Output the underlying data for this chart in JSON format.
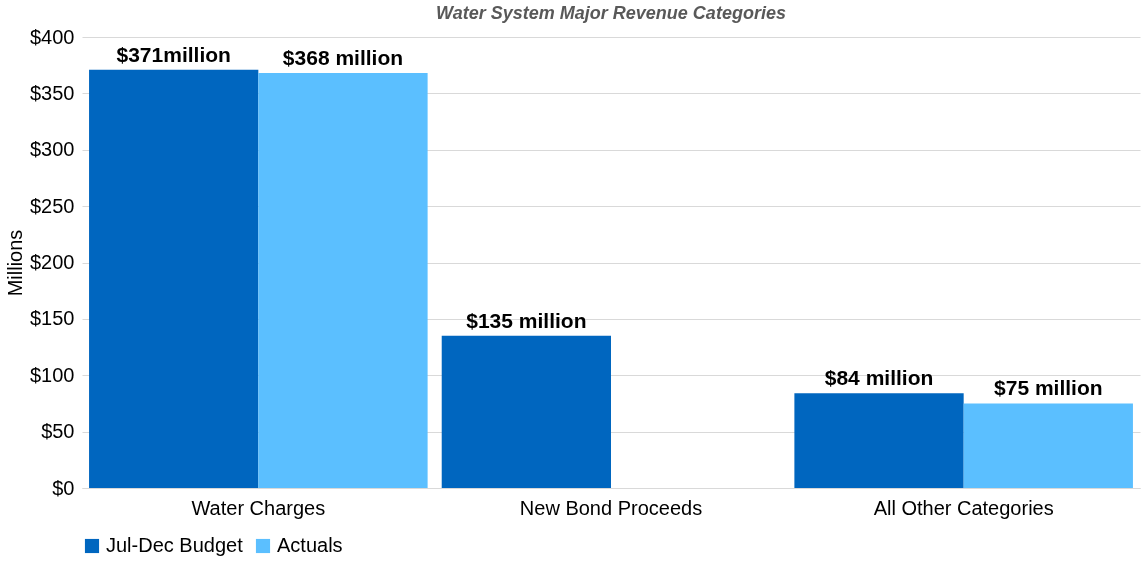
{
  "chart_data": {
    "type": "bar",
    "title": "Water System Major Revenue Categories",
    "ylabel": "Millions",
    "categories": [
      "Water Charges",
      "New Bond Proceeds",
      "All Other Categories"
    ],
    "series": [
      {
        "name": "Jul-Dec Budget",
        "color": "#0066bf",
        "values": [
          371,
          135,
          84
        ],
        "value_labels": [
          "$371million",
          "$135 million",
          "$84 million"
        ]
      },
      {
        "name": "Actuals",
        "color": "#5bbfff",
        "values": [
          368,
          null,
          75
        ],
        "value_labels": [
          "$368 million",
          null,
          "$75 million"
        ]
      }
    ],
    "ylim": [
      0,
      400
    ],
    "yticks": [
      {
        "value": 0,
        "label": "$0"
      },
      {
        "value": 50,
        "label": "$50"
      },
      {
        "value": 100,
        "label": "$100"
      },
      {
        "value": 150,
        "label": "$150"
      },
      {
        "value": 200,
        "label": "$200"
      },
      {
        "value": 250,
        "label": "$250"
      },
      {
        "value": 300,
        "label": "$300"
      },
      {
        "value": 350,
        "label": "$350"
      },
      {
        "value": 400,
        "label": "$400"
      }
    ],
    "grid": "y",
    "legend": "bottom"
  }
}
